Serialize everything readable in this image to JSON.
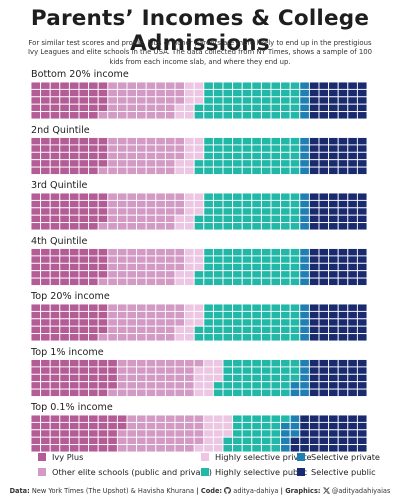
{
  "title": "Parents’ Incomes & College Admissions",
  "subtitle": "For similar test scores and profile, kids of richer parents are more likely to end up in the prestigious Ivy Leagues and elite schools in the USA. The data collected from NY Times, shows a sample of 100 kids from each income slab, and where they end up.",
  "footer": {
    "data_label": "Data:",
    "data_text": "New York Times (The Upshot) & Havisha Khurana",
    "code_label": "| Code:",
    "code_icon": "github-icon",
    "code_text": "aditya-dahiya",
    "graphics_label": "| Graphics:",
    "graphics_icon": "x-icon",
    "graphics_text": "@adityadahiyaias"
  },
  "chart_data": {
    "type": "waffle",
    "unit": "1 square = 1 kid (100 kids per income slab)",
    "categories": [
      {
        "name": "Ivy Plus",
        "color": "#b35c96"
      },
      {
        "name": "Other elite schools (public and private)",
        "color": "#d29ac4"
      },
      {
        "name": "Highly selective private",
        "color": "#ecc6e3"
      },
      {
        "name": "Highly selective public",
        "color": "#22b8a8"
      },
      {
        "name": "Selective private",
        "color": "#1f7fb2"
      },
      {
        "name": "Selective public",
        "color": "#1a2a6e"
      }
    ],
    "series": [
      {
        "name": "Bottom 20% income",
        "values": [
          22,
          22,
          6,
          30,
          3,
          17
        ]
      },
      {
        "name": "2nd Quintile",
        "values": [
          22,
          22,
          6,
          30,
          3,
          17
        ]
      },
      {
        "name": "3rd Quintile",
        "values": [
          22,
          22,
          6,
          30,
          3,
          17
        ]
      },
      {
        "name": "4th Quintile",
        "values": [
          22,
          22,
          6,
          30,
          3,
          17
        ]
      },
      {
        "name": "Top 20% income",
        "values": [
          22,
          22,
          6,
          30,
          3,
          17
        ]
      },
      {
        "name": "Top 1% income",
        "values": [
          25,
          24,
          7,
          23,
          4,
          17
        ]
      },
      {
        "name": "Top 0.1% income",
        "values": [
          27,
          24,
          8,
          16,
          4,
          21
        ]
      }
    ]
  }
}
